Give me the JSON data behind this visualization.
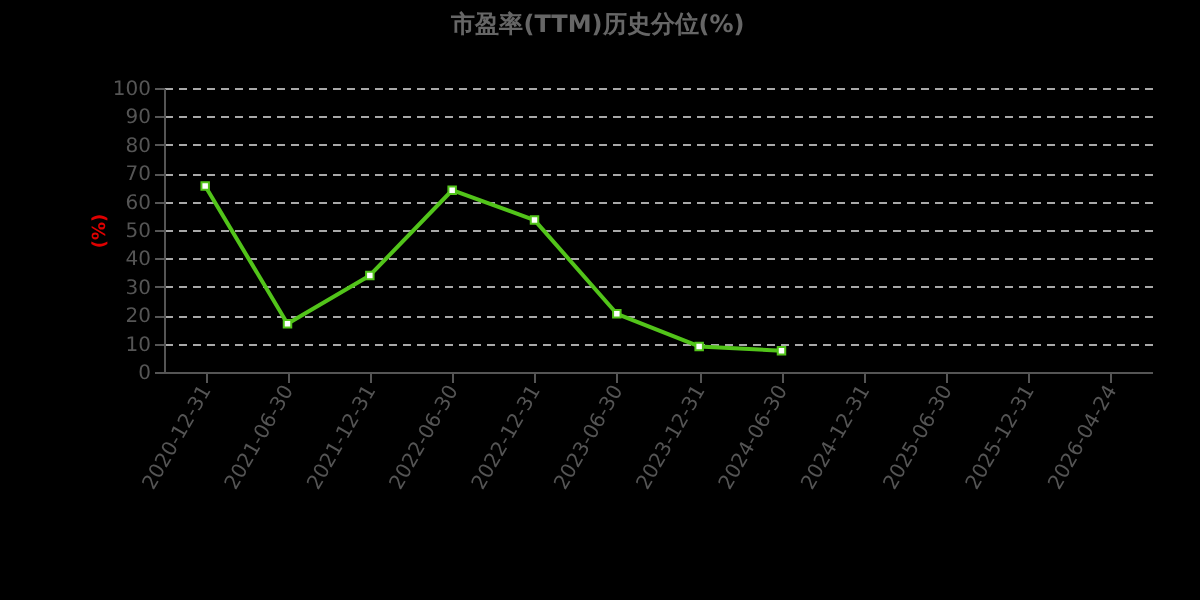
{
  "chart_data": {
    "type": "line",
    "title": "市盈率(TTM)历史分位(%)",
    "ylabel": "(%)",
    "categories": [
      "2020-12-31",
      "2021-06-30",
      "2021-12-31",
      "2022-06-30",
      "2022-12-31",
      "2023-06-30",
      "2023-12-31",
      "2024-06-30",
      "2024-12-31",
      "2025-06-30",
      "2025-12-31",
      "2026-04-24"
    ],
    "series": [
      {
        "color": "#52c41a",
        "values": [
          65.5,
          17,
          34,
          64,
          53.5,
          20.5,
          9,
          7.5,
          null,
          null,
          null,
          null
        ]
      }
    ],
    "ylim": [
      0,
      100
    ],
    "yticks": [
      0,
      10,
      20,
      30,
      40,
      50,
      60,
      70,
      80,
      90,
      100
    ],
    "grid": "y",
    "marker": "square",
    "line_style": "solid"
  }
}
